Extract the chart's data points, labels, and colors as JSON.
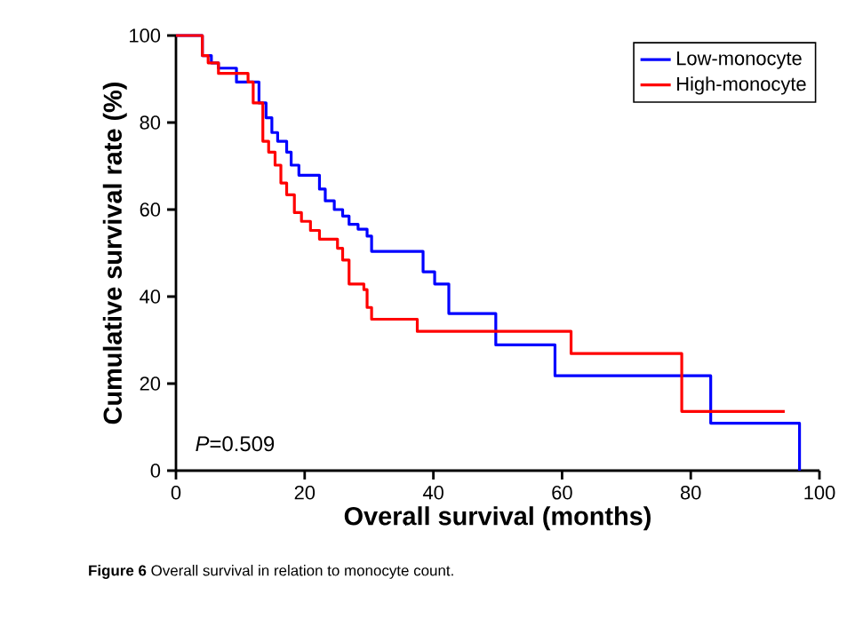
{
  "chart_data": {
    "type": "step",
    "xlabel": "Overall survival (months)",
    "ylabel": "Cumulative survival rate (%)",
    "xlim": [
      0,
      100
    ],
    "xticks": [
      0,
      20,
      40,
      60,
      80,
      100
    ],
    "ylim": [
      0,
      100
    ],
    "yticks": [
      0,
      20,
      40,
      60,
      80,
      100
    ],
    "legend": "top right",
    "annotations": [
      "*P*=0.509",
      "**Figure 6** Overall survival in relation to monocyte count."
    ],
    "series": [
      {
        "name": "Low-monocyte",
        "color": "#0000ff",
        "x": [
          0,
          4.1,
          5.5,
          6.6,
          9.4,
          12.9,
          14.0,
          14.9,
          15.8,
          17.2,
          17.9,
          19.1,
          22.3,
          23.2,
          24.6,
          25.9,
          26.9,
          28.3,
          29.7,
          30.4,
          38.4,
          40.2,
          42.4,
          49.7,
          58.9,
          83.1,
          96.9
        ],
        "values": [
          100,
          95.4,
          93.7,
          92.5,
          89.3,
          84.5,
          81.1,
          77.7,
          75.7,
          73.2,
          70.2,
          67.9,
          64.7,
          62,
          60,
          58.5,
          56.6,
          55.5,
          53.9,
          50.4,
          45.7,
          42.9,
          36.1,
          28.9,
          21.8,
          10.9,
          0
        ]
      },
      {
        "name": "High-monocyte",
        "color": "#ff0000",
        "x": [
          0,
          4.1,
          5.0,
          6.6,
          11.2,
          12.0,
          13.5,
          14.4,
          15.4,
          16.3,
          17.2,
          18.4,
          19.5,
          20.9,
          22.3,
          25.1,
          25.9,
          26.9,
          29.2,
          29.7,
          30.4,
          37.5,
          61.4,
          78.6,
          94.6
        ],
        "values": [
          100,
          95.4,
          93.7,
          91.3,
          89.3,
          84.5,
          75.7,
          73.2,
          70.2,
          66.1,
          63.4,
          59.3,
          57.3,
          55.2,
          53.2,
          51.1,
          48.4,
          42.9,
          41.6,
          37.5,
          34.8,
          32.0,
          26.9,
          13.6,
          13.6
        ]
      }
    ]
  }
}
